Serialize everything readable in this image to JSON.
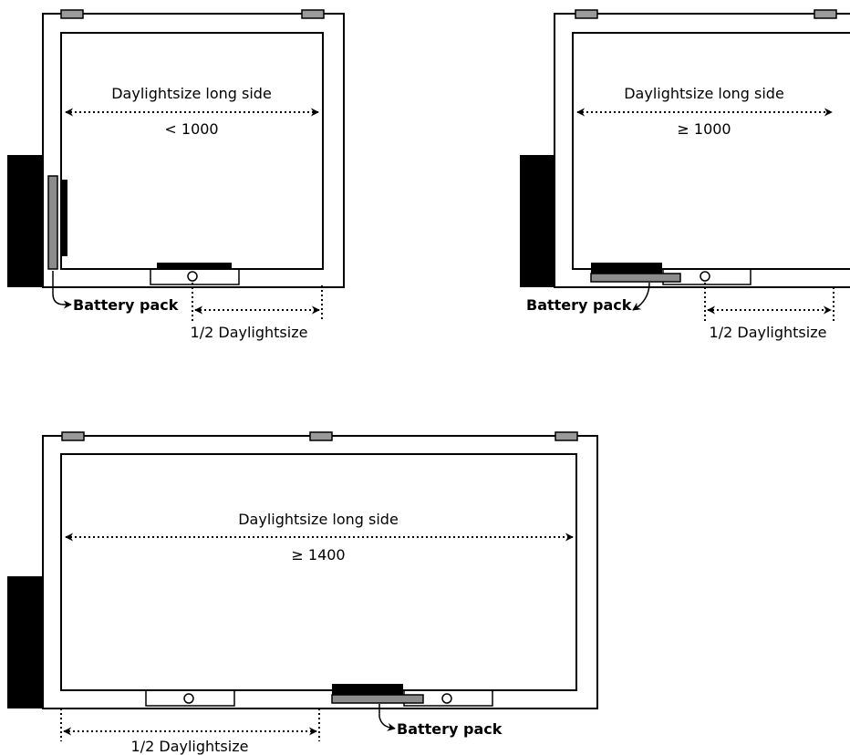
{
  "diagrams": [
    {
      "heading": "Daylightsize long side",
      "condition": "< 1000",
      "battery_label": "Battery pack",
      "half_label": "1/2 Daylightsize"
    },
    {
      "heading": "Daylightsize long side",
      "condition": "≥ 1000",
      "battery_label": "Battery pack",
      "half_label": "1/2 Daylightsize"
    },
    {
      "heading": "Daylightsize long side",
      "condition": "≥ 1400",
      "battery_label": "Battery pack",
      "half_label": "1/2 Daylightsize"
    }
  ],
  "colors": {
    "frame_stroke": "#000000",
    "clip_fill": "#9a9a9a",
    "wall_fill": "#000000",
    "battery_dark": "#000000",
    "battery_grey": "#8c8c8c",
    "background": "#ffffff"
  }
}
